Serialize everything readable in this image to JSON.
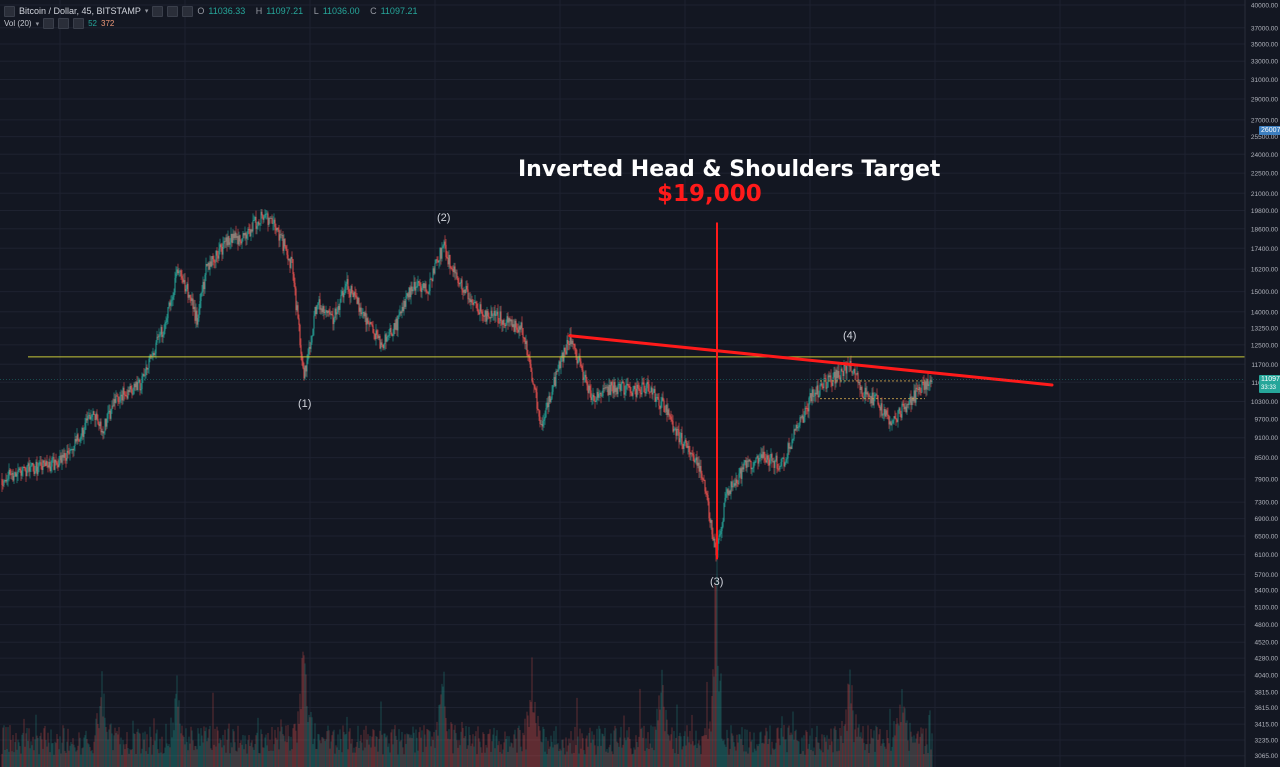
{
  "header": {
    "symbol": "Bitcoin / Dollar, 45, BITSTAMP",
    "dropdown_icon": "chevron-down-icon",
    "ohlc": [
      {
        "label": "O",
        "value": "11036.33"
      },
      {
        "label": "H",
        "value": "11097.21"
      },
      {
        "label": "L",
        "value": "11036.00"
      },
      {
        "label": "C",
        "value": "11097.21"
      }
    ],
    "volume_label": "Vol (20)",
    "volume_values": [
      "52",
      "372"
    ]
  },
  "annotations": {
    "title": "Inverted Head & Shoulders Target",
    "target": "$19,000",
    "waves": [
      {
        "label": "(1)",
        "date_index": 302
      },
      {
        "label": "(2)",
        "date_index": 441
      },
      {
        "label": "(3)",
        "date_index": 714
      },
      {
        "label": "(4)",
        "date_index": 848
      }
    ]
  },
  "colors": {
    "background": "#131722",
    "up": "#26a69a",
    "down": "#ef5350",
    "grid": "#1e2230",
    "neckline": "#ff1a1a",
    "support": "#c8c83a",
    "text": "#d1d4dc",
    "last_price_bg": "#26a69a",
    "marker_bg": "#3c7ebf"
  },
  "chart_data": {
    "type": "candlestick",
    "title": "Inverted Head & Shoulders Target",
    "y_scale": "log",
    "ylim": [
      3000,
      40000
    ],
    "y_ticks": [
      "40000.00",
      "37000.00",
      "35000.00",
      "33000.00",
      "31000.00",
      "29000.00",
      "27000.00",
      "25500.00",
      "24000.00",
      "22500.00",
      "21000.00",
      "19800.00",
      "18600.00",
      "17400.00",
      "16200.00",
      "15000.00",
      "14000.00",
      "13250.00",
      "12500.00",
      "11700.00",
      "11000.00",
      "10300.00",
      "9700.00",
      "9100.00",
      "8500.00",
      "7900.00",
      "7300.00",
      "6900.00",
      "6500.00",
      "6100.00",
      "5700.00",
      "5400.00",
      "5100.00",
      "4800.00",
      "4520.00",
      "4280.00",
      "4040.00",
      "3815.00",
      "3615.00",
      "3415.00",
      "3235.00",
      "3065.00"
    ],
    "last_price": "11097.21",
    "last_price_sub": "33:33",
    "marker_price": "26007.75",
    "price_path": [
      [
        0,
        7900
      ],
      [
        20,
        8150
      ],
      [
        50,
        8300
      ],
      [
        70,
        8700
      ],
      [
        90,
        9900
      ],
      [
        100,
        9300
      ],
      [
        115,
        10400
      ],
      [
        140,
        11000
      ],
      [
        155,
        12600
      ],
      [
        165,
        13700
      ],
      [
        175,
        16000
      ],
      [
        185,
        15200
      ],
      [
        195,
        13600
      ],
      [
        205,
        16400
      ],
      [
        225,
        17800
      ],
      [
        245,
        18200
      ],
      [
        260,
        19600
      ],
      [
        275,
        18600
      ],
      [
        290,
        16400
      ],
      [
        302,
        11200
      ],
      [
        315,
        14500
      ],
      [
        330,
        13600
      ],
      [
        345,
        15300
      ],
      [
        360,
        14100
      ],
      [
        378,
        12500
      ],
      [
        395,
        13400
      ],
      [
        410,
        15300
      ],
      [
        425,
        15100
      ],
      [
        441,
        17500
      ],
      [
        460,
        15200
      ],
      [
        480,
        13900
      ],
      [
        500,
        13700
      ],
      [
        520,
        13200
      ],
      [
        530,
        11200
      ],
      [
        540,
        9400
      ],
      [
        550,
        10800
      ],
      [
        568,
        12900
      ],
      [
        590,
        10300
      ],
      [
        610,
        10800
      ],
      [
        635,
        10700
      ],
      [
        645,
        10900
      ],
      [
        660,
        10200
      ],
      [
        680,
        9000
      ],
      [
        695,
        8400
      ],
      [
        705,
        7400
      ],
      [
        714,
        6000
      ],
      [
        725,
        7600
      ],
      [
        745,
        8300
      ],
      [
        760,
        8500
      ],
      [
        780,
        8300
      ],
      [
        795,
        9400
      ],
      [
        810,
        10500
      ],
      [
        825,
        11000
      ],
      [
        838,
        11300
      ],
      [
        848,
        11800
      ],
      [
        860,
        10700
      ],
      [
        875,
        10300
      ],
      [
        890,
        9500
      ],
      [
        900,
        10000
      ],
      [
        915,
        10600
      ],
      [
        930,
        11100
      ]
    ],
    "neckline": [
      [
        568,
        12900
      ],
      [
        1050,
        10900
      ]
    ],
    "support_level": 12000,
    "target_price": 19000,
    "target_x": 715,
    "date_range": [
      0,
      930
    ]
  }
}
